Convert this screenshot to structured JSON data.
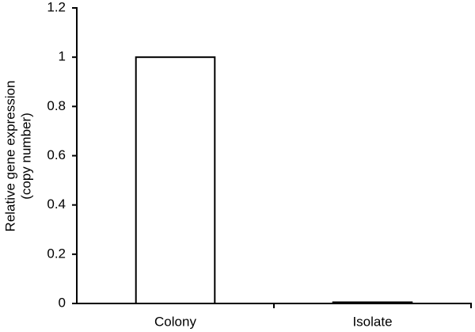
{
  "chart_data": {
    "type": "bar",
    "y_label": [
      "Relative gene expression",
      "(copy number)"
    ],
    "categories": [
      "Colony",
      "Isolate"
    ],
    "values": [
      1,
      0.005
    ],
    "color": "#ffffff",
    "edge_color": "#000000",
    "ylim": [
      0,
      1.2
    ],
    "yticks": [
      0,
      0.2,
      0.4,
      0.6,
      0.8,
      1,
      1.2
    ],
    "grid": false
  }
}
